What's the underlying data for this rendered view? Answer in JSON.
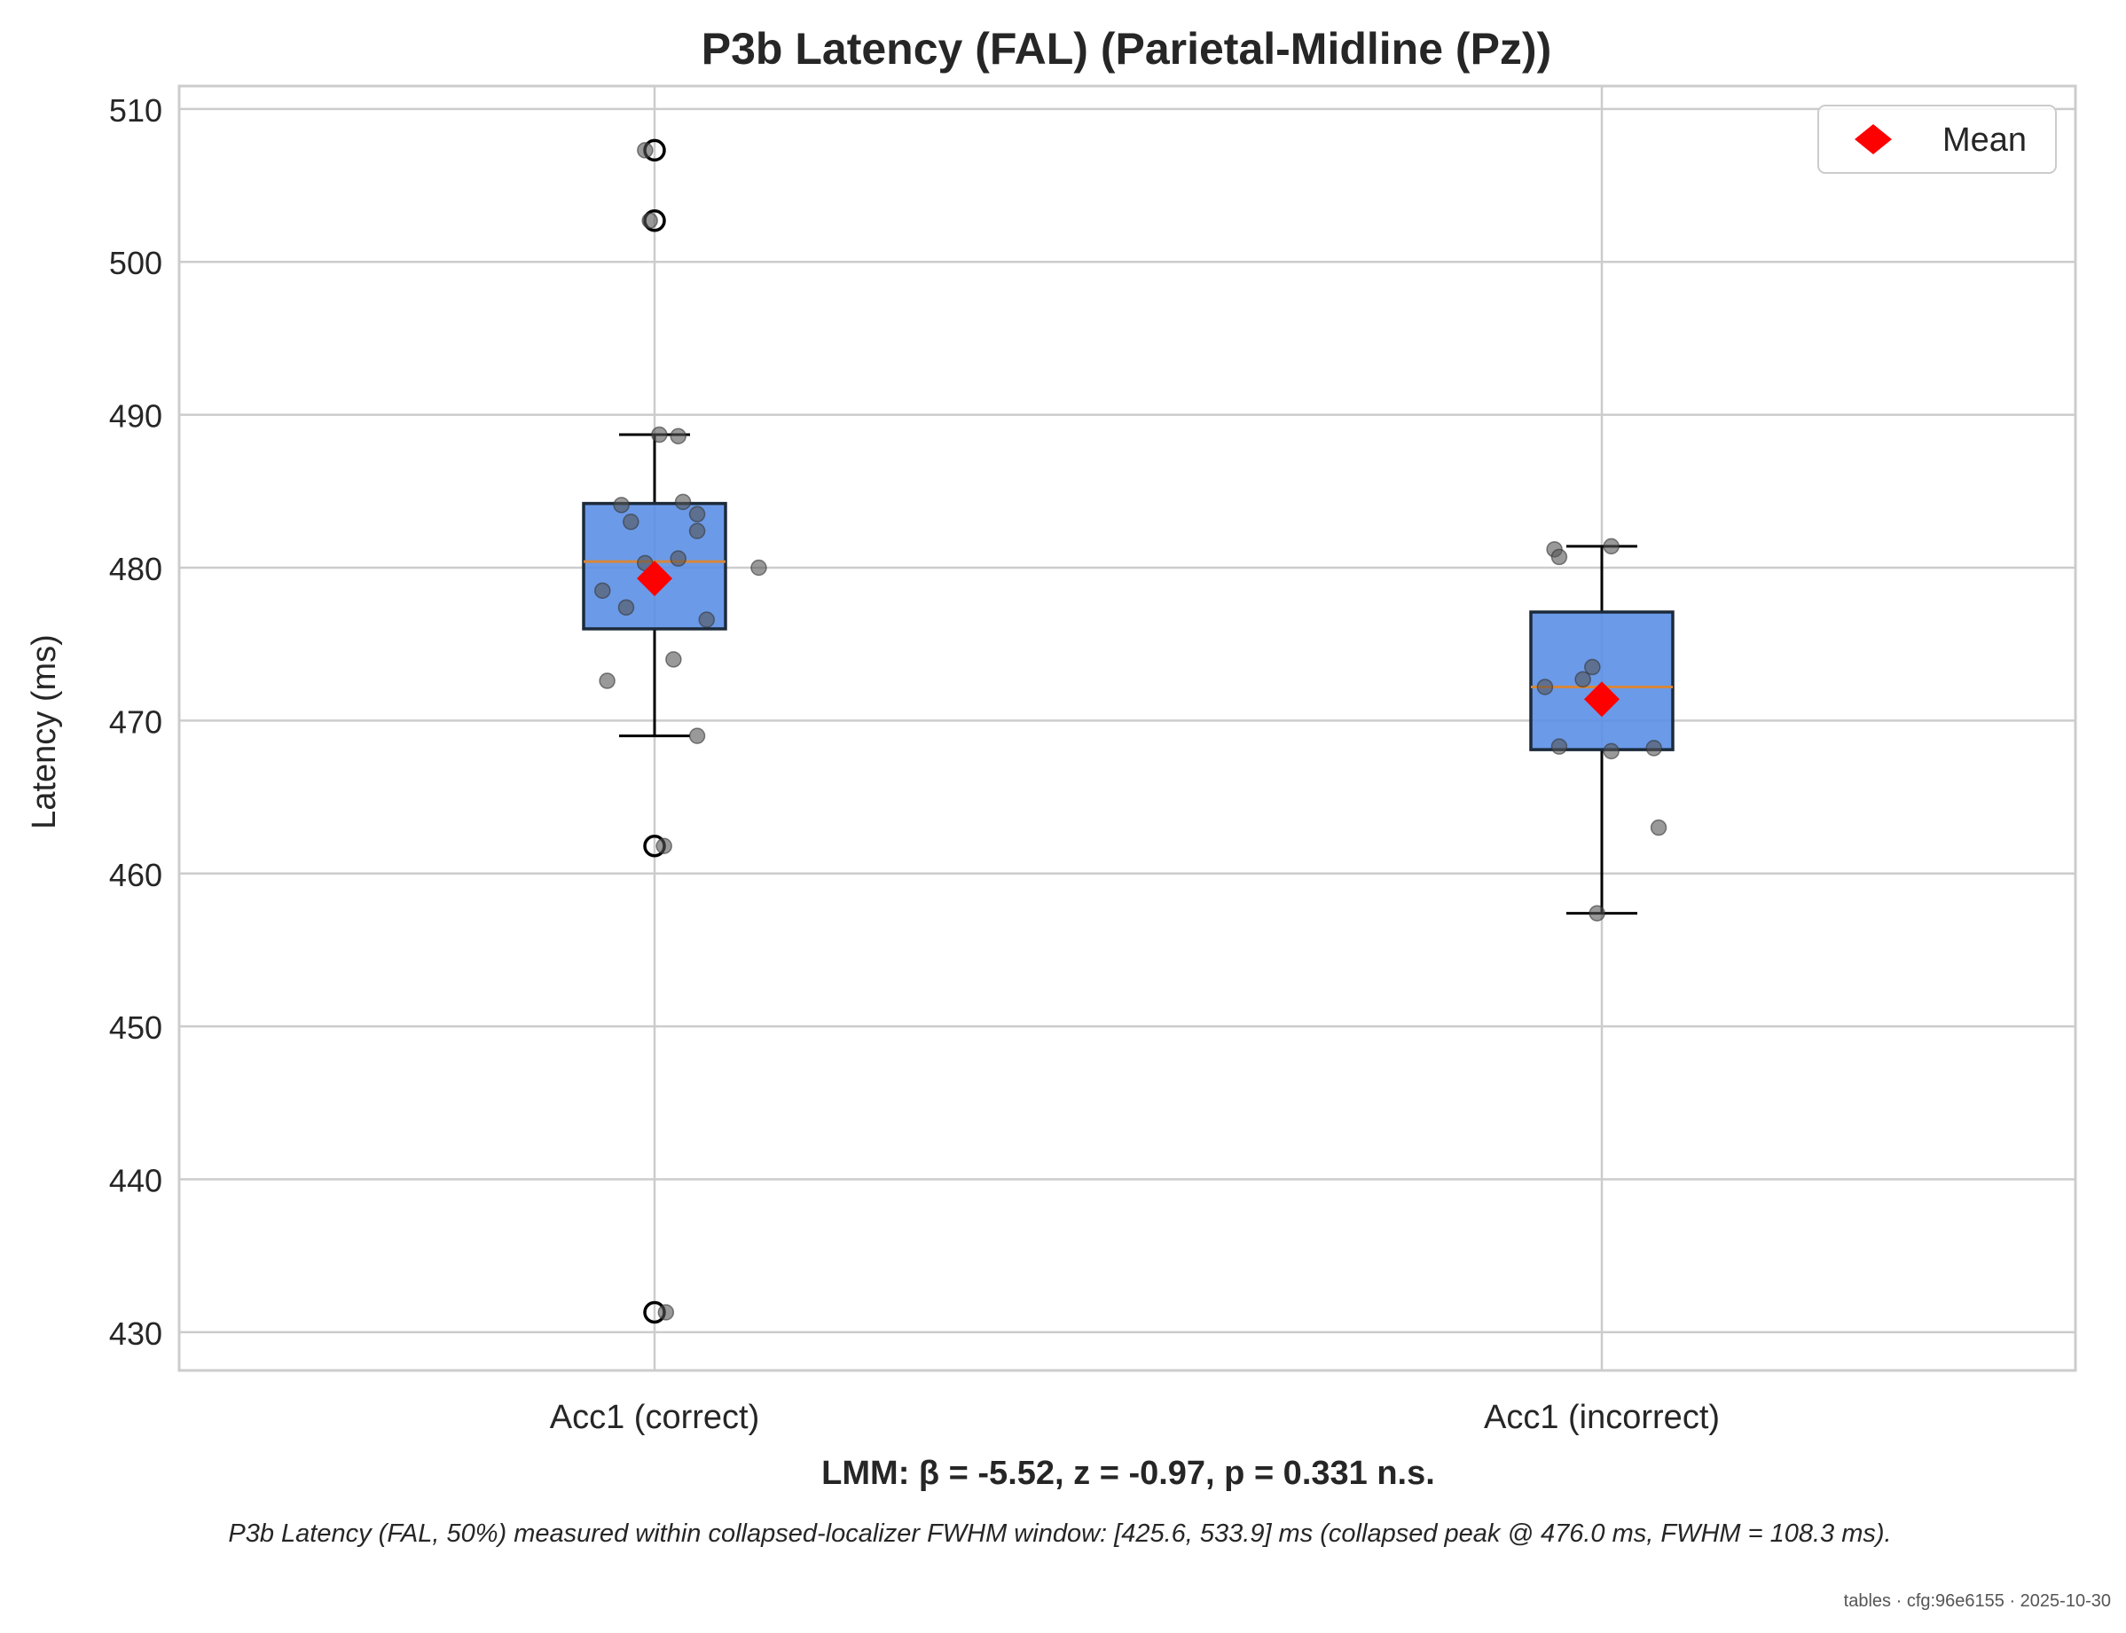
{
  "chart_data": {
    "type": "box",
    "title": "P3b Latency (FAL) (Parietal-Midline (Pz))",
    "xlabel": "",
    "ylabel": "Latency (ms)",
    "ylim": [
      427.5,
      511.5
    ],
    "yticks": [
      430,
      440,
      450,
      460,
      470,
      480,
      490,
      500,
      510
    ],
    "categories": [
      "Acc1 (correct)",
      "Acc1 (incorrect)"
    ],
    "grid": true,
    "legend": {
      "position": "top-right",
      "entries": [
        "Mean"
      ]
    },
    "colors": {
      "box_fill": "#5b8fe6",
      "box_edge": "#1c2a3a",
      "median": "#d6863a",
      "mean_marker": "#ff0000",
      "points": "#555555",
      "grid": "#cccccc",
      "spine": "#cccccc"
    },
    "series": [
      {
        "category": "Acc1 (correct)",
        "q1": 476.0,
        "median": 480.4,
        "q3": 484.2,
        "whisker_low": 469.0,
        "whisker_high": 488.7,
        "mean": 479.3,
        "outliers": [
          507.3,
          502.7,
          461.8,
          431.3
        ],
        "points": [
          {
            "dx": -0.01,
            "y": 507.3
          },
          {
            "dx": -0.005,
            "y": 502.7
          },
          {
            "dx": 0.005,
            "y": 488.7
          },
          {
            "dx": 0.025,
            "y": 488.6
          },
          {
            "dx": -0.035,
            "y": 484.1
          },
          {
            "dx": 0.03,
            "y": 484.3
          },
          {
            "dx": 0.045,
            "y": 483.5
          },
          {
            "dx": -0.025,
            "y": 483.0
          },
          {
            "dx": 0.045,
            "y": 482.4
          },
          {
            "dx": 0.025,
            "y": 480.6
          },
          {
            "dx": -0.01,
            "y": 480.3
          },
          {
            "dx": 0.11,
            "y": 480.0
          },
          {
            "dx": -0.055,
            "y": 478.5
          },
          {
            "dx": -0.03,
            "y": 477.4
          },
          {
            "dx": 0.055,
            "y": 476.6
          },
          {
            "dx": 0.02,
            "y": 474.0
          },
          {
            "dx": -0.05,
            "y": 472.6
          },
          {
            "dx": 0.045,
            "y": 469.0
          },
          {
            "dx": 0.01,
            "y": 461.8
          },
          {
            "dx": 0.012,
            "y": 431.3
          }
        ]
      },
      {
        "category": "Acc1 (incorrect)",
        "q1": 468.1,
        "median": 472.2,
        "q3": 477.1,
        "whisker_low": 457.4,
        "whisker_high": 481.4,
        "mean": 471.4,
        "outliers": [],
        "points": [
          {
            "dx": -0.05,
            "y": 481.2
          },
          {
            "dx": 0.01,
            "y": 481.4
          },
          {
            "dx": -0.045,
            "y": 480.7
          },
          {
            "dx": -0.01,
            "y": 473.5
          },
          {
            "dx": -0.02,
            "y": 472.7
          },
          {
            "dx": -0.06,
            "y": 472.2
          },
          {
            "dx": -0.045,
            "y": 468.3
          },
          {
            "dx": 0.01,
            "y": 468.0
          },
          {
            "dx": 0.055,
            "y": 468.2
          },
          {
            "dx": 0.06,
            "y": 463.0
          },
          {
            "dx": -0.005,
            "y": 457.4
          }
        ]
      }
    ],
    "annotation": "LMM: β = -5.52, z = -0.97, p = 0.331 n.s.",
    "footnote": "P3b Latency (FAL, 50%) measured within collapsed-localizer FWHM window: [425.6, 533.9] ms (collapsed peak @ 476.0 ms, FWHM = 108.3 ms).",
    "stamp": "tables · cfg:96e6155 · 2025-10-30"
  }
}
